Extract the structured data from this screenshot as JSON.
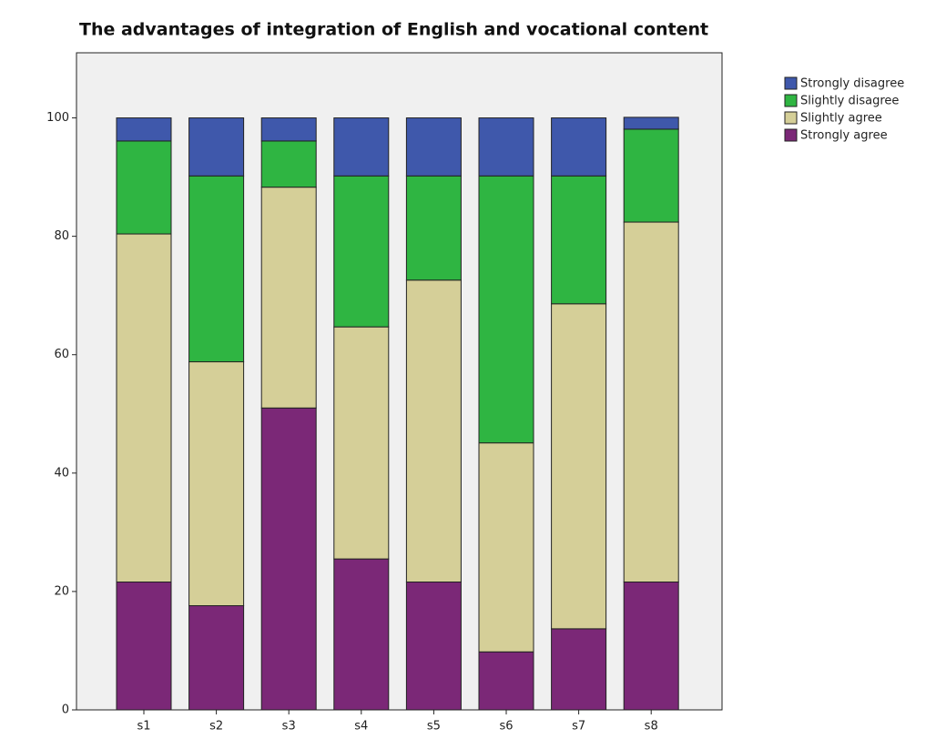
{
  "chart_data": {
    "type": "stacked_bar",
    "title": "The advantages of integration of English and vocational content",
    "categories": [
      "s1",
      "s2",
      "s3",
      "s4",
      "s5",
      "s6",
      "s7",
      "s8"
    ],
    "series": [
      {
        "name": "Strongly agree",
        "color": "#7b2877",
        "values": [
          21.6,
          17.6,
          51.0,
          25.5,
          21.6,
          9.8,
          13.7,
          21.6
        ]
      },
      {
        "name": "Slightly agree",
        "color": "#d5cf98",
        "values": [
          58.8,
          41.2,
          37.3,
          39.2,
          51.0,
          35.3,
          54.9,
          60.8
        ]
      },
      {
        "name": "Slightly disagree",
        "color": "#2fb542",
        "values": [
          15.7,
          31.4,
          7.8,
          25.5,
          17.6,
          45.1,
          21.6,
          15.7
        ]
      },
      {
        "name": "Strongly disagree",
        "color": "#3f58ab",
        "values": [
          3.9,
          9.8,
          3.9,
          9.8,
          9.8,
          9.8,
          9.8,
          2.0
        ]
      }
    ],
    "ylim": [
      0,
      111
    ],
    "yticks": [
      0,
      20,
      40,
      60,
      80,
      100
    ],
    "legend": "right"
  }
}
